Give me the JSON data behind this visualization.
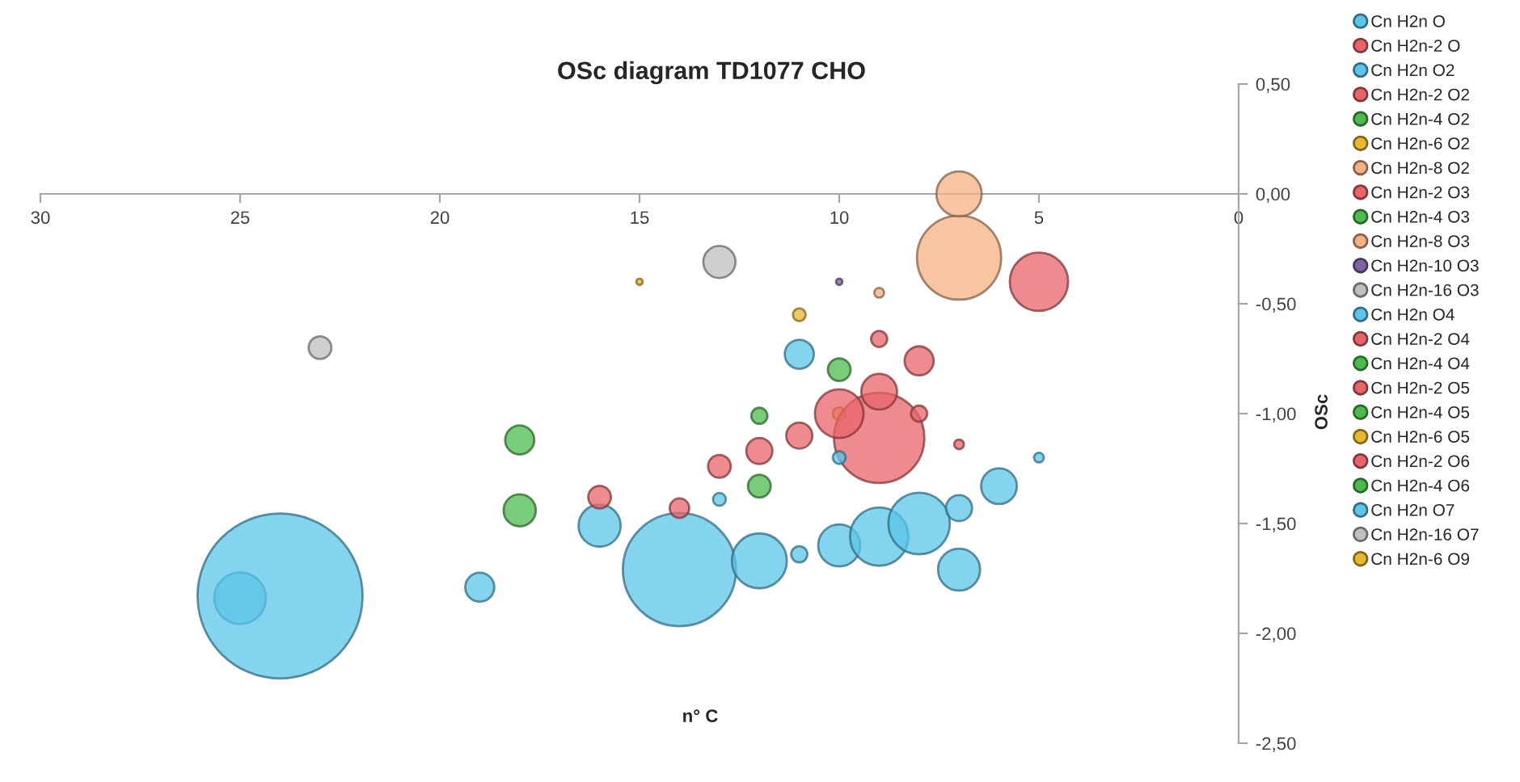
{
  "chart_data": {
    "type": "bubble",
    "title": "OSc diagram TD1077 CHO",
    "xlabel": "n° C",
    "ylabel": "OSc",
    "xlim": [
      30,
      0
    ],
    "xticks": [
      30,
      25,
      20,
      15,
      10,
      5,
      0
    ],
    "ylim": [
      -2.5,
      0.5
    ],
    "yticks": [
      {
        "value": 0.5,
        "label": "0,50"
      },
      {
        "value": 0,
        "label": "0,00"
      },
      {
        "value": -0.5,
        "label": "-0,50"
      },
      {
        "value": -1,
        "label": "-1,00"
      },
      {
        "value": -1.5,
        "label": "-1,50"
      },
      {
        "value": -2,
        "label": "-2,00"
      },
      {
        "value": -2.5,
        "label": "-2,50"
      }
    ],
    "grid": false,
    "legend": "right",
    "series": [
      {
        "name": "Cn H2n O",
        "color": "#5bc5ea",
        "x": [
          7
        ],
        "values": [
          -1.71
        ],
        "sizes": [
          0.065
        ]
      },
      {
        "name": "Cn H2n-2 O",
        "color": "#e8646a"
      },
      {
        "name": "Cn H2n O2",
        "color": "#5bc5ea",
        "x": [
          25,
          24,
          19,
          14,
          12,
          11,
          10,
          9,
          8,
          7,
          6,
          5
        ],
        "values": [
          -1.84,
          -1.83,
          -1.79,
          -1.71,
          -1.67,
          -1.64,
          -1.6,
          -1.56,
          -1.5,
          -1.43,
          -1.33,
          -1.2
        ],
        "sizes": [
          0.098,
          1,
          0.031,
          0.47,
          0.111,
          0.0096,
          0.065,
          0.125,
          0.139,
          0.025,
          0.047,
          0.0035
        ]
      },
      {
        "name": "Cn H2n-2 O2",
        "color": "#e8646a",
        "x": [
          7
        ],
        "values": [
          -1.14
        ],
        "sizes": [
          0.0035
        ]
      },
      {
        "name": "Cn H2n-4 O2",
        "color": "#4cbb4c",
        "x": [
          12
        ],
        "values": [
          -1.33
        ],
        "sizes": [
          0.019
        ]
      },
      {
        "name": "Cn H2n-6 O2",
        "color": "#e8b830",
        "x": [
          10
        ],
        "values": [
          -1.0
        ],
        "sizes": [
          0.006
        ]
      },
      {
        "name": "Cn H2n-8 O2",
        "color": "#f4b183",
        "x": [
          7
        ],
        "values": [
          -0.29
        ],
        "sizes": [
          0.26
        ]
      },
      {
        "name": "Cn H2n-2 O3",
        "color": "#e8646a",
        "x": [
          14,
          9,
          8,
          5
        ],
        "values": [
          -1.43,
          -1.11,
          -1.0,
          -0.4
        ],
        "sizes": [
          0.014,
          0.3,
          0.0096,
          0.125
        ]
      },
      {
        "name": "Cn H2n-4 O3",
        "color": "#4cbb4c",
        "x": [
          18
        ],
        "values": [
          -1.44
        ],
        "sizes": [
          0.038
        ]
      },
      {
        "name": "Cn H2n-8 O3",
        "color": "#f4b183",
        "x": [
          9,
          7
        ],
        "values": [
          -0.45,
          0.0
        ],
        "sizes": [
          0.0035,
          0.075
        ]
      },
      {
        "name": "Cn H2n-10 O3",
        "color": "#8064a2",
        "x": [
          10
        ],
        "values": [
          -0.4
        ],
        "sizes": [
          0.0015
        ]
      },
      {
        "name": "Cn H2n-16 O3",
        "color": "#bfbfbf",
        "x": [
          13
        ],
        "values": [
          -0.31
        ],
        "sizes": [
          0.038
        ]
      },
      {
        "name": "Cn H2n O4",
        "color": "#5bc5ea",
        "x": [
          16,
          13,
          10
        ],
        "values": [
          -1.51,
          -1.39,
          -1.2
        ],
        "sizes": [
          0.065,
          0.006,
          0.006
        ]
      },
      {
        "name": "Cn H2n-2 O4",
        "color": "#e8646a",
        "x": [
          16,
          13,
          12,
          11,
          10,
          9,
          8
        ],
        "values": [
          -1.38,
          -1.24,
          -1.17,
          -1.1,
          -1.0,
          -0.9,
          -0.76
        ],
        "sizes": [
          0.019,
          0.019,
          0.025,
          0.025,
          0.087,
          0.047,
          0.031
        ]
      },
      {
        "name": "Cn H2n-4 O4",
        "color": "#4cbb4c",
        "x": [
          12,
          10
        ],
        "values": [
          -1.01,
          -0.8
        ],
        "sizes": [
          0.0096,
          0.019
        ]
      },
      {
        "name": "Cn H2n-2 O5",
        "color": "#e8646a",
        "x": [
          9
        ],
        "values": [
          -0.66
        ],
        "sizes": [
          0.0096
        ]
      },
      {
        "name": "Cn H2n-4 O5",
        "color": "#4cbb4c"
      },
      {
        "name": "Cn H2n-6 O5",
        "color": "#e8b830",
        "x": [
          11
        ],
        "values": [
          -0.55
        ],
        "sizes": [
          0.006
        ]
      },
      {
        "name": "Cn H2n-2 O6",
        "color": "#e8646a"
      },
      {
        "name": "Cn H2n-4 O6",
        "color": "#4cbb4c",
        "x": [
          18
        ],
        "values": [
          -1.12
        ],
        "sizes": [
          0.031
        ]
      },
      {
        "name": "Cn H2n O7",
        "color": "#5bc5ea",
        "x": [
          11
        ],
        "values": [
          -0.73
        ],
        "sizes": [
          0.031
        ]
      },
      {
        "name": "Cn H2n-16 O7",
        "color": "#bfbfbf",
        "x": [
          23
        ],
        "values": [
          -0.7
        ],
        "sizes": [
          0.019
        ]
      },
      {
        "name": "Cn H2n-6 O9",
        "color": "#e8b830",
        "x": [
          15
        ],
        "values": [
          -0.4
        ],
        "sizes": [
          0.0015
        ]
      }
    ]
  }
}
